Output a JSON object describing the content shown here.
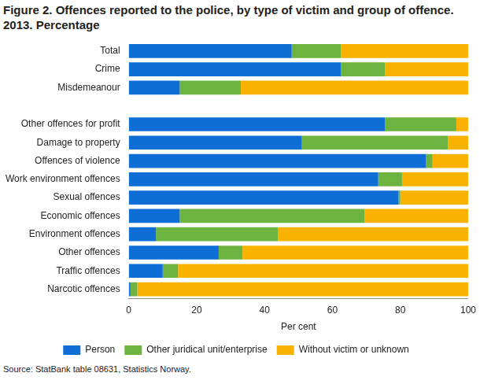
{
  "chart_data": {
    "type": "bar",
    "title": "Figure 2. Offences reported to the police, by type of victim and group of offence. 2013. Percentage",
    "source": "Source: StatBank table 08631, Statistics Norway.",
    "orientation": "horizontal",
    "stacked": true,
    "legend": "bottom",
    "grid": false,
    "x_label": "Per cent",
    "categories": [
      "Total",
      "Crime",
      "Misdemeanour",
      null,
      "Other offences for profit",
      "Damage to property",
      "Offences of violence",
      "Work environment offences",
      "Sexual offences",
      "Economic offences",
      "Environment offences",
      "Other offences",
      "Traffic offences",
      "Narcotic offences"
    ],
    "series": [
      {
        "name": "Person",
        "color": "#0e6ed5",
        "values": [
          48,
          62.5,
          15,
          null,
          75.5,
          51,
          87.5,
          73.5,
          79.5,
          15,
          8,
          26.5,
          10,
          0.5
        ]
      },
      {
        "name": "Other juridical unit/enterprise",
        "color": "#6db33f",
        "values": [
          14.5,
          13,
          18,
          null,
          21,
          43,
          2,
          7,
          0.5,
          54.5,
          36,
          7,
          4.5,
          2
        ]
      },
      {
        "name": "Without victim or unknown",
        "color": "#f9b200",
        "values": [
          37.5,
          24.5,
          67,
          null,
          3.5,
          6,
          10.5,
          19.5,
          20,
          30.5,
          56,
          66.5,
          85.5,
          97.5
        ]
      }
    ],
    "xlim": [
      0,
      100
    ],
    "xticks": [
      0,
      20,
      40,
      60,
      80,
      100
    ]
  }
}
